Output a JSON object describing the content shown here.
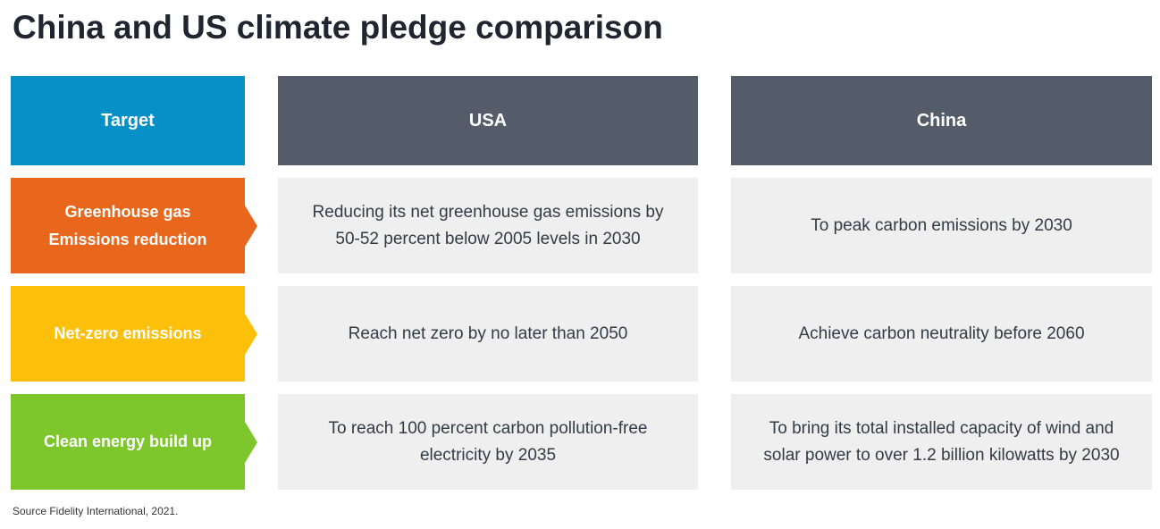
{
  "title": "China and US climate pledge comparison",
  "source": "Source Fidelity International, 2021.",
  "colors": {
    "target_header_bg": "#0590C8",
    "country_header_bg": "#545C6A",
    "cell_bg": "#EFEFEF",
    "title_text": "#20262F",
    "cell_text": "#333B46"
  },
  "table": {
    "headers": {
      "target": "Target",
      "usa": "USA",
      "china": "China"
    },
    "rows": [
      {
        "target": "Greenhouse gas Emissions reduction",
        "color": "#E8671C",
        "usa": "Reducing its net greenhouse gas emissions by 50-52 percent below 2005 levels in 2030",
        "china": "To peak carbon emissions by 2030"
      },
      {
        "target": "Net-zero emissions",
        "color": "#FDC00A",
        "usa": "Reach net zero by no later than 2050",
        "china": "Achieve carbon neutrality before 2060"
      },
      {
        "target": "Clean energy build up",
        "color": "#7DC62B",
        "usa": "To reach 100 percent carbon pollution-free electricity by 2035",
        "china": "To bring its total installed capacity of wind and solar power to over 1.2 billion kilowatts by 2030"
      }
    ]
  },
  "chart_data": {
    "type": "table",
    "title": "China and US climate pledge comparison",
    "columns": [
      "Target",
      "USA",
      "China"
    ],
    "rows": [
      [
        "Greenhouse gas Emissions reduction",
        "Reducing its net greenhouse gas emissions by 50-52 percent below 2005 levels in 2030",
        "To peak carbon emissions by 2030"
      ],
      [
        "Net-zero emissions",
        "Reach net zero by no later than 2050",
        "Achieve carbon neutrality before 2060"
      ],
      [
        "Clean energy build up",
        "To reach 100 percent carbon pollution-free electricity by 2035",
        "To bring its total installed capacity of wind and solar power to over 1.2 billion kilowatts by 2030"
      ]
    ],
    "annotations": [
      "Source Fidelity International, 2021."
    ],
    "legend_position": "none",
    "row_accent_colors": [
      "#E8671C",
      "#FDC00A",
      "#7DC62B"
    ],
    "header_colors": {
      "target": "#0590C8",
      "countries": "#545C6A"
    }
  }
}
